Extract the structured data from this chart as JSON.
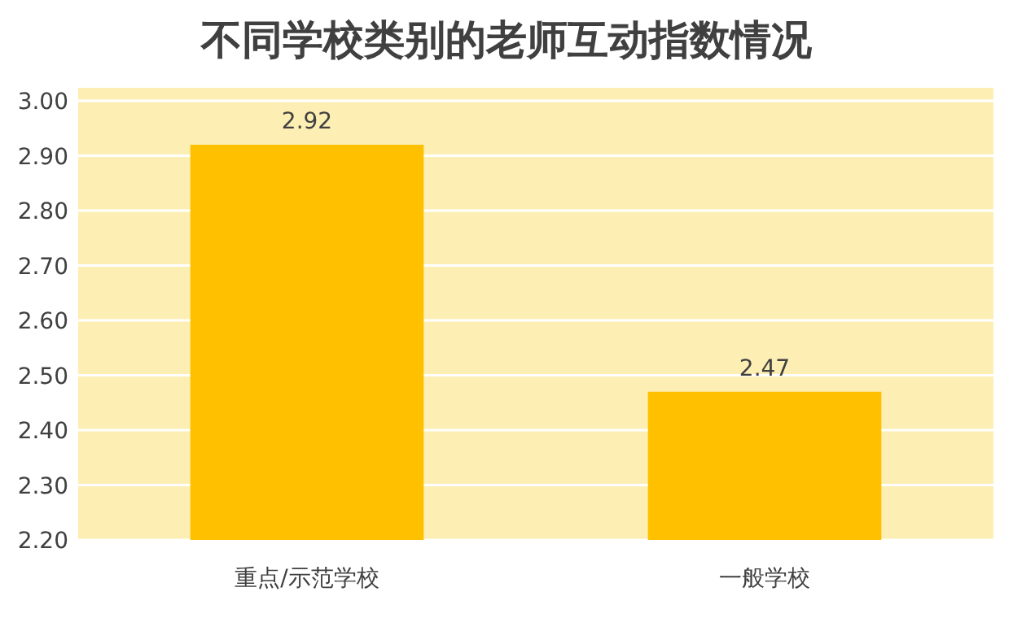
{
  "chart_data": {
    "type": "bar",
    "title": "不同学校类别的老师互动指数情况",
    "categories": [
      "重点/示范学校",
      "一般学校"
    ],
    "values": [
      2.92,
      2.47
    ],
    "color": "#ffc000",
    "data_labels": true,
    "grid": "y",
    "ylim": [
      2.2,
      3.0
    ],
    "yticks": [
      {
        "value": 2.2,
        "label": "2.20"
      },
      {
        "value": 2.3,
        "label": "2.30"
      },
      {
        "value": 2.4,
        "label": "2.40"
      },
      {
        "value": 2.5,
        "label": "2.50"
      },
      {
        "value": 2.6,
        "label": "2.60"
      },
      {
        "value": 2.7,
        "label": "2.70"
      },
      {
        "value": 2.8,
        "label": "2.80"
      },
      {
        "value": 2.9,
        "label": "2.90"
      },
      {
        "value": 3.0,
        "label": "3.00"
      }
    ]
  }
}
